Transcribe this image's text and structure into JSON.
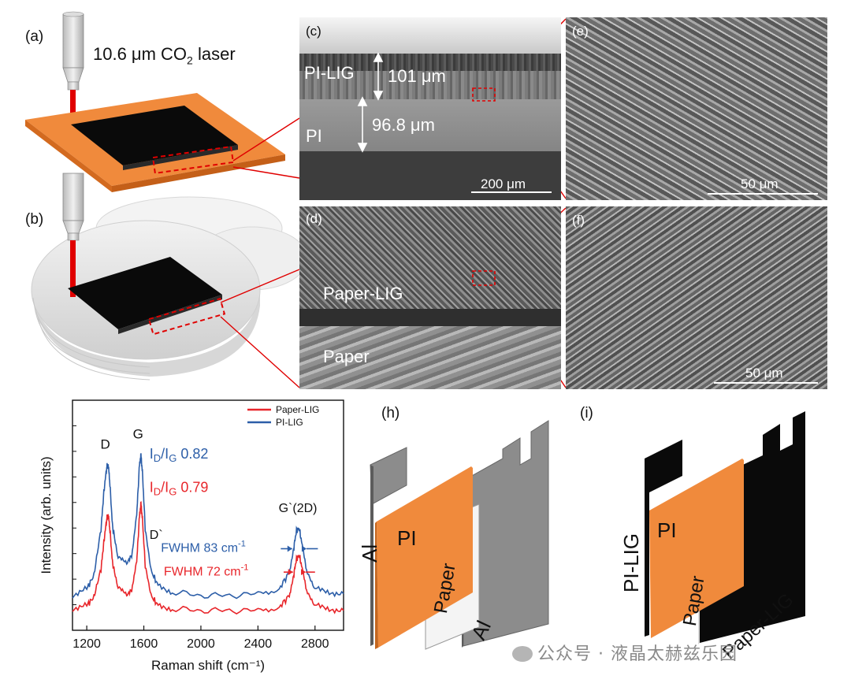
{
  "figure": {
    "panels": {
      "a": "(a)",
      "b": "(b)",
      "c": "(c)",
      "d": "(d)",
      "e": "(e)",
      "f": "(f)",
      "h": "(h)",
      "i": "(i)"
    },
    "laser_label": "10.6 μm CO",
    "laser_label_sub": "2",
    "laser_label_tail": " laser",
    "sem_c": {
      "layer_top": "PI-LIG",
      "thickness_top": "101 μm",
      "layer_bottom": "PI",
      "thickness_bottom": "96.8 μm",
      "scale": "200 μm"
    },
    "sem_d": {
      "layer_top": "Paper-LIG",
      "layer_bottom": "Paper"
    },
    "sem_e": {
      "scale": "50 μm"
    },
    "sem_f": {
      "scale": "50 μm"
    },
    "device_h": {
      "left_label": "Al",
      "middle_label": "PI",
      "paper_label": "Paper",
      "right_label": "Al"
    },
    "device_i": {
      "left_label": "PI-LIG",
      "middle_label": "PI",
      "paper_label": "Paper",
      "right_label": "Paper-LIG"
    },
    "watermark": "公众号 · 液晶太赫兹乐园"
  },
  "colors": {
    "pi_orange": "#f08a3c",
    "lig_black": "#0a0a0a",
    "al_gray": "#8c8c8c",
    "paper_white": "#f4f4f4",
    "laser_red": "#e00000",
    "paper_lig_series": "#e8262b",
    "pi_lig_series": "#2c5ea8"
  },
  "chart_data": {
    "type": "line",
    "xlabel": "Raman shift (cm⁻¹)",
    "ylabel": "Intensity (arb. units)",
    "xlim": [
      1100,
      3000
    ],
    "x_ticks": [
      1200,
      1600,
      2000,
      2400,
      2800
    ],
    "y_ticks_labeled": false,
    "legend_position": "top-right",
    "series": [
      {
        "name": "Paper-LIG",
        "color": "#e8262b",
        "x": [
          1100,
          1200,
          1250,
          1300,
          1320,
          1340,
          1350,
          1360,
          1380,
          1420,
          1480,
          1520,
          1550,
          1570,
          1580,
          1590,
          1610,
          1650,
          1700,
          1800,
          2000,
          2200,
          2400,
          2550,
          2620,
          2650,
          2670,
          2690,
          2710,
          2740,
          2800,
          2900,
          3000
        ],
        "y": [
          0.1,
          0.12,
          0.17,
          0.34,
          0.5,
          0.64,
          0.66,
          0.6,
          0.38,
          0.22,
          0.18,
          0.22,
          0.38,
          0.66,
          0.73,
          0.64,
          0.36,
          0.18,
          0.12,
          0.1,
          0.09,
          0.09,
          0.09,
          0.11,
          0.18,
          0.3,
          0.4,
          0.42,
          0.34,
          0.2,
          0.12,
          0.1,
          0.09
        ]
      },
      {
        "name": "PI-LIG",
        "color": "#2c5ea8",
        "x": [
          1100,
          1200,
          1250,
          1300,
          1320,
          1340,
          1350,
          1360,
          1380,
          1420,
          1480,
          1520,
          1550,
          1570,
          1580,
          1590,
          1610,
          1650,
          1700,
          1800,
          2000,
          2200,
          2400,
          2550,
          2620,
          2650,
          2670,
          2690,
          2710,
          2740,
          2800,
          2900,
          3000
        ],
        "y": [
          0.18,
          0.22,
          0.3,
          0.58,
          0.8,
          0.95,
          0.96,
          0.88,
          0.6,
          0.4,
          0.37,
          0.43,
          0.66,
          0.97,
          1.02,
          0.92,
          0.58,
          0.33,
          0.24,
          0.2,
          0.18,
          0.18,
          0.19,
          0.22,
          0.32,
          0.46,
          0.57,
          0.58,
          0.48,
          0.32,
          0.22,
          0.2,
          0.19
        ]
      }
    ],
    "annotations": {
      "d_band": "D",
      "g_band": "G",
      "d_prime": "D`",
      "two_d": "G`(2D)",
      "ratio_pi": "0.82",
      "ratio_paper": "0.79",
      "ratio_prefix_main": "I",
      "ratio_sub_d": "D",
      "ratio_sub_g": "G",
      "fwhm_pi": "FWHM 83 cm",
      "fwhm_paper": "FWHM 72 cm",
      "fwhm_sup": "-1"
    }
  }
}
